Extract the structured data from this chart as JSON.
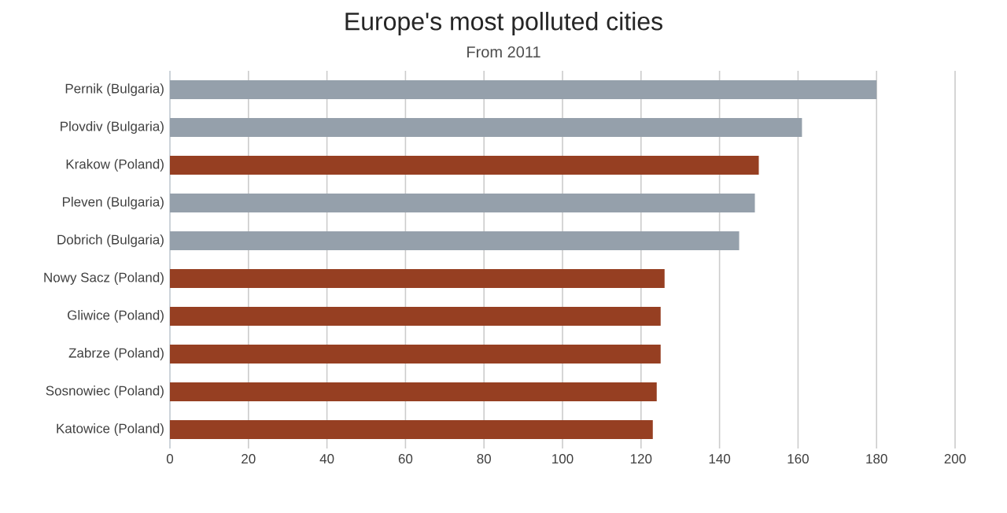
{
  "chart_data": {
    "type": "bar",
    "orientation": "horizontal",
    "title": "Europe's most polluted cities",
    "subtitle": "From 2011",
    "categories": [
      "Pernik (Bulgaria)",
      "Plovdiv (Bulgaria)",
      "Krakow (Poland)",
      "Pleven (Bulgaria)",
      "Dobrich (Bulgaria)",
      "Nowy Sacz (Poland)",
      "Gliwice (Poland)",
      "Zabrze (Poland)",
      "Sosnowiec (Poland)",
      "Katowice (Poland)"
    ],
    "values": [
      180,
      161,
      150,
      149,
      145,
      126,
      125,
      125,
      124,
      123
    ],
    "colors": [
      "#95a0ab",
      "#95a0ab",
      "#963f22",
      "#95a0ab",
      "#95a0ab",
      "#963f22",
      "#963f22",
      "#963f22",
      "#963f22",
      "#963f22"
    ],
    "xlim": [
      0,
      200
    ],
    "xticks": [
      0,
      20,
      40,
      60,
      80,
      100,
      120,
      140,
      160,
      180,
      200
    ],
    "grid": "x"
  }
}
